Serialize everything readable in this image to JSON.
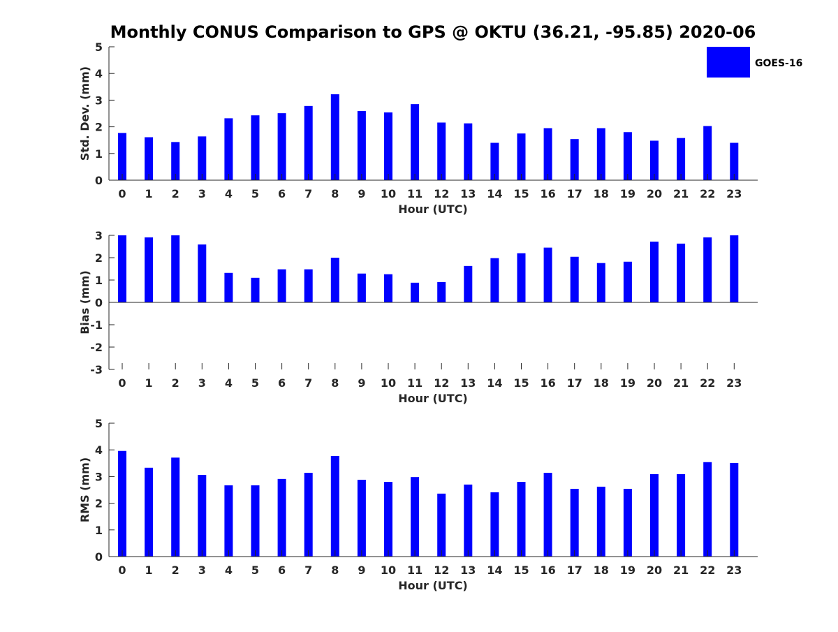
{
  "chart_data": {
    "type": "bar",
    "title": "Monthly CONUS Comparison to GPS @ OKTU (36.21, -95.85) 2020-06",
    "legend": {
      "label": "GOES-16",
      "placement": "top-right"
    },
    "bar_color": "#0000ff",
    "categories": [
      "0",
      "1",
      "2",
      "3",
      "4",
      "5",
      "6",
      "7",
      "8",
      "9",
      "10",
      "11",
      "12",
      "13",
      "14",
      "15",
      "16",
      "17",
      "18",
      "19",
      "20",
      "21",
      "22",
      "23"
    ],
    "panels": [
      {
        "id": "std",
        "ylabel": "Std. Dev. (mm)",
        "xlabel": "Hour (UTC)",
        "ylim": [
          0,
          5
        ],
        "yticks": [
          0,
          1,
          2,
          3,
          4,
          5
        ],
        "values": [
          1.77,
          1.61,
          1.43,
          1.64,
          2.32,
          2.43,
          2.51,
          2.78,
          3.22,
          2.59,
          2.54,
          2.85,
          2.16,
          2.13,
          1.4,
          1.75,
          1.95,
          1.54,
          1.95,
          1.8,
          1.48,
          1.58,
          2.03,
          1.4
        ]
      },
      {
        "id": "bias",
        "ylabel": "Bias (mm)",
        "xlabel": "Hour (UTC)",
        "ylim": [
          -3,
          3
        ],
        "yticks": [
          -3,
          -2,
          -1,
          0,
          1,
          2,
          3
        ],
        "values": [
          3.0,
          2.91,
          3.0,
          2.59,
          1.32,
          1.1,
          1.48,
          1.48,
          2.0,
          1.29,
          1.26,
          0.88,
          0.91,
          1.63,
          1.98,
          2.2,
          2.45,
          2.04,
          1.76,
          1.82,
          2.72,
          2.63,
          2.91,
          3.0
        ]
      },
      {
        "id": "rms",
        "ylabel": "RMS (mm)",
        "xlabel": "Hour (UTC)",
        "ylim": [
          0,
          5
        ],
        "yticks": [
          0,
          1,
          2,
          3,
          4,
          5
        ],
        "values": [
          3.96,
          3.33,
          3.71,
          3.06,
          2.67,
          2.67,
          2.91,
          3.14,
          3.77,
          2.88,
          2.8,
          2.98,
          2.36,
          2.7,
          2.41,
          2.8,
          3.14,
          2.54,
          2.62,
          2.54,
          3.09,
          3.09,
          3.54,
          3.51
        ]
      }
    ]
  }
}
